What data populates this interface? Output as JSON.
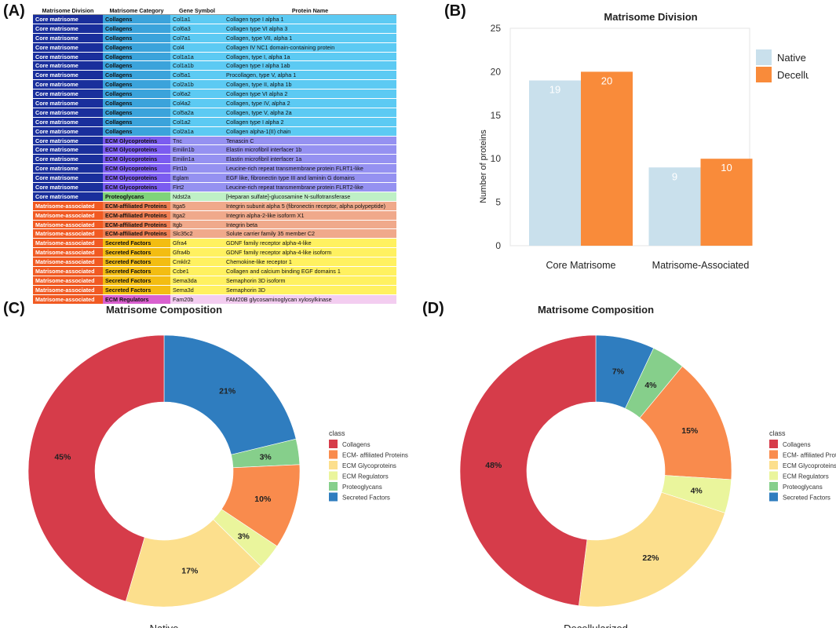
{
  "panels": {
    "a": "(A)",
    "b": "(B)",
    "c": "(C)",
    "d": "(D)"
  },
  "table": {
    "headers": [
      "Matrisome Division",
      "Matrisome Category",
      "Gene Symbol",
      "Protein Name"
    ],
    "colors": {
      "Core matrisome": "#1a2f9c",
      "Matrisome-associated": "#f15a22",
      "Collagens": "#3ba3db",
      "ECM Glycoproteins": "#7b5cf0",
      "Proteoglycans": "#7fd37a",
      "ECM-affiliated Proteins": "#ee7e52",
      "Secreted Factors": "#f3bd12",
      "ECM Regulators": "#d960cf",
      "row_Collagens": "#5ccaf3",
      "row_ECM Glycoproteins": "#9591f1",
      "row_Proteoglycans": "#bff0c6",
      "row_ECM-affiliated Proteins": "#f0a98b",
      "row_Secreted Factors": "#fff160",
      "row_ECM Regulators": "#f3cdf0"
    },
    "rows": [
      [
        "Core matrisome",
        "Collagens",
        "Col1a1",
        "Collagen type I alpha 1"
      ],
      [
        "Core matrisome",
        "Collagens",
        "Col6a3",
        "Collagen type VI alpha 3"
      ],
      [
        "Core matrisome",
        "Collagens",
        "Col7a1",
        "Collagen, type VII, alpha 1"
      ],
      [
        "Core matrisome",
        "Collagens",
        "Col4",
        "Collagen IV NC1 domain-containing protein"
      ],
      [
        "Core matrisome",
        "Collagens",
        "Col1a1a",
        "Collagen, type I, alpha 1a"
      ],
      [
        "Core matrisome",
        "Collagens",
        "Col1a1b",
        "Collagen type I alpha 1ab"
      ],
      [
        "Core matrisome",
        "Collagens",
        "Col5a1",
        "Procollagen, type V, alpha 1"
      ],
      [
        "Core matrisome",
        "Collagens",
        "Col2a1b",
        "Collagen, type II, alpha 1b"
      ],
      [
        "Core matrisome",
        "Collagens",
        "Col6a2",
        "Collagen type VI alpha 2"
      ],
      [
        "Core matrisome",
        "Collagens",
        "Col4a2",
        "Collagen, type IV, alpha 2"
      ],
      [
        "Core matrisome",
        "Collagens",
        "Col5a2a",
        "Collagen, type V, alpha 2a"
      ],
      [
        "Core matrisome",
        "Collagens",
        "Col1a2",
        "Collagen type I alpha 2"
      ],
      [
        "Core matrisome",
        "Collagens",
        "Col2a1a",
        "Collagen alpha-1(II) chain"
      ],
      [
        "Core matrisome",
        "ECM Glycoproteins",
        "Tnc",
        "Tenascin C"
      ],
      [
        "Core matrisome",
        "ECM Glycoproteins",
        "Emilin1b",
        "Elastin microfibril interfacer 1b"
      ],
      [
        "Core matrisome",
        "ECM Glycoproteins",
        "Emilin1a",
        "Elastin microfibril interfacer 1a"
      ],
      [
        "Core matrisome",
        "ECM Glycoproteins",
        "Flrt1b",
        "Leucine-rich repeat transmembrane protein FLRT1-like"
      ],
      [
        "Core matrisome",
        "ECM Glycoproteins",
        "Eglam",
        "EGF like, fibronectin type III and laminin G domains"
      ],
      [
        "Core matrisome",
        "ECM Glycoproteins",
        "Flrt2",
        "Leucine-rich repeat transmembrane protein FLRT2-like"
      ],
      [
        "Core matrisome",
        "Proteoglycans",
        "Ndst2a",
        "[Heparan sulfate]-glucosamine N-sulfotransferase"
      ],
      [
        "Matrisome-associated",
        "ECM-affiliated Proteins",
        "Itga5",
        "Integrin subunit alpha 5 (fibronectin receptor, alpha polypeptide)"
      ],
      [
        "Matrisome-associated",
        "ECM-affiliated Proteins",
        "Itga2",
        "Integrin alpha-2-like isoform X1"
      ],
      [
        "Matrisome-associated",
        "ECM-affiliated Proteins",
        "Itgb",
        "Integrin beta"
      ],
      [
        "Matrisome-associated",
        "ECM-affiliated Proteins",
        "Slc35c2",
        "Solute carrier family 35 member C2"
      ],
      [
        "Matrisome-associated",
        "Secreted Factors",
        "Gfra4",
        "GDNF family receptor alpha-4-like"
      ],
      [
        "Matrisome-associated",
        "Secreted Factors",
        "Gfra4b",
        "GDNF family receptor alpha-4-like isoform"
      ],
      [
        "Matrisome-associated",
        "Secreted Factors",
        "Cmklr2",
        "Chemokine-like receptor 1"
      ],
      [
        "Matrisome-associated",
        "Secreted Factors",
        "Ccbe1",
        "Collagen and calcium binding EGF domains 1"
      ],
      [
        "Matrisome-associated",
        "Secreted Factors",
        "Sema3da",
        "Semaphorin 3D isoform"
      ],
      [
        "Matrisome-associated",
        "Secreted Factors",
        "Sema3d",
        "Semaphorin 3D"
      ],
      [
        "Matrisome-associated",
        "ECM Regulators",
        "Fam20b",
        "FAM20B glycosaminoglycan xylosylkinase"
      ]
    ]
  },
  "chart_data": [
    {
      "type": "bar",
      "title": "Matrisome Division",
      "categories": [
        "Core Matrisome",
        "Matrisome-Associated"
      ],
      "series": [
        {
          "name": "Native",
          "values": [
            19,
            9
          ],
          "color": "#c9e0ec"
        },
        {
          "name": "Decellularized",
          "values": [
            20,
            10
          ],
          "color": "#f98b3a"
        }
      ],
      "ylabel": "Number of proteins",
      "xlabel": "",
      "ylim": [
        0,
        25
      ],
      "yticks": [
        "0",
        "5",
        "10",
        "15",
        "20",
        "25"
      ],
      "data_labels": [
        [
          "19",
          "9"
        ],
        [
          "20",
          "10"
        ]
      ]
    },
    {
      "type": "pie",
      "title": "Matrisome Composition",
      "xlabel": "Native",
      "legend_title": "class",
      "legend": [
        "Collagens",
        "ECM- affiliated Proteins",
        "ECM Glycoproteins",
        "ECM Regulators",
        "Proteoglycans",
        "Secreted Factors"
      ],
      "slices": [
        {
          "label": "Secreted Factors",
          "value": 21,
          "text": "21%",
          "color": "#2f7dbf"
        },
        {
          "label": "Proteoglycans",
          "value": 3,
          "text": "3%",
          "color": "#86cf8b"
        },
        {
          "label": "ECM- affiliated Proteins",
          "value": 10,
          "text": "10%",
          "color": "#f98b4d"
        },
        {
          "label": "ECM Regulators",
          "value": 3,
          "text": "3%",
          "color": "#eaf59c"
        },
        {
          "label": "ECM Glycoproteins",
          "value": 17,
          "text": "17%",
          "color": "#fcdf8d"
        },
        {
          "label": "Collagens",
          "value": 45,
          "text": "45%",
          "color": "#d63c4a"
        }
      ]
    },
    {
      "type": "pie",
      "title": "Matrisome Composition",
      "xlabel": "Decellularized",
      "legend_title": "class",
      "legend": [
        "Collagens",
        "ECM- affiliated Prote",
        "ECM Glycoproteins",
        "ECM Regulators",
        "Proteoglycans",
        "Secreted Factors"
      ],
      "slices": [
        {
          "label": "Secreted Factors",
          "value": 7,
          "text": "7%",
          "color": "#2f7dbf"
        },
        {
          "label": "Proteoglycans",
          "value": 4,
          "text": "4%",
          "color": "#86cf8b"
        },
        {
          "label": "ECM- affiliated Proteins",
          "value": 15,
          "text": "15%",
          "color": "#f98b4d"
        },
        {
          "label": "ECM Regulators",
          "value": 4,
          "text": "4%",
          "color": "#eaf59c"
        },
        {
          "label": "ECM Glycoproteins",
          "value": 22,
          "text": "22%",
          "color": "#fcdf8d"
        },
        {
          "label": "Collagens",
          "value": 48,
          "text": "48%",
          "color": "#d63c4a"
        }
      ]
    }
  ]
}
